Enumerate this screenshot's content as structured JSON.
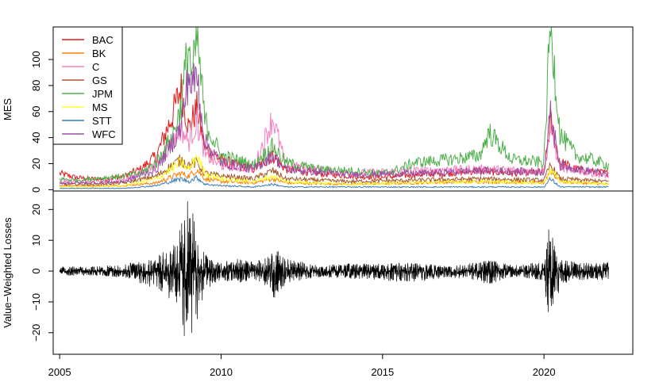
{
  "chart_data": [
    {
      "type": "line",
      "title": "",
      "xlabel": "",
      "ylabel": "MES",
      "xlim": [
        2004.8,
        2022.75
      ],
      "ylim": [
        -1,
        125
      ],
      "yticks": [
        "0",
        "20",
        "40",
        "60",
        "80",
        "100"
      ],
      "ytick_values": [
        0,
        20,
        40,
        60,
        80,
        100
      ],
      "legend_position": "top-left",
      "grid": false,
      "series": [
        {
          "name": "BAC",
          "color": "#e41a1c",
          "x": [
            2005.0,
            2005.5,
            2006.0,
            2006.5,
            2007.0,
            2007.5,
            2008.0,
            2008.5,
            2008.75,
            2009.0,
            2009.25,
            2009.5,
            2010.0,
            2010.5,
            2011.0,
            2011.6,
            2012.0,
            2013.0,
            2014.0,
            2015.0,
            2016.0,
            2017.0,
            2018.0,
            2019.0,
            2020.0,
            2020.2,
            2020.5,
            2021.0,
            2022.0
          ],
          "y": [
            12,
            9,
            8,
            8,
            10,
            15,
            25,
            55,
            75,
            45,
            60,
            30,
            22,
            18,
            15,
            25,
            15,
            12,
            10,
            9,
            11,
            12,
            14,
            12,
            13,
            50,
            20,
            15,
            12
          ]
        },
        {
          "name": "BK",
          "color": "#ff7f00",
          "x": [
            2005.0,
            2006.0,
            2007.0,
            2008.0,
            2008.75,
            2009.0,
            2009.25,
            2009.5,
            2010.0,
            2011.0,
            2011.6,
            2012.0,
            2014.0,
            2016.0,
            2018.0,
            2020.0,
            2020.2,
            2020.5,
            2022.0
          ],
          "y": [
            3,
            3,
            3,
            5,
            12,
            10,
            15,
            8,
            6,
            5,
            8,
            5,
            4,
            5,
            6,
            5,
            14,
            6,
            4
          ]
        },
        {
          "name": "C",
          "color": "#f781bf",
          "x": [
            2005.0,
            2006.0,
            2007.0,
            2008.0,
            2008.75,
            2009.0,
            2009.25,
            2009.5,
            2010.0,
            2011.0,
            2011.6,
            2012.0,
            2014.0,
            2016.0,
            2018.0,
            2020.0,
            2020.2,
            2020.5,
            2022.0
          ],
          "y": [
            6,
            6,
            7,
            18,
            45,
            35,
            50,
            25,
            18,
            15,
            53,
            18,
            12,
            14,
            15,
            14,
            45,
            16,
            10
          ]
        },
        {
          "name": "GS",
          "color": "#a65628",
          "x": [
            2005.0,
            2006.0,
            2007.0,
            2008.0,
            2008.75,
            2009.0,
            2009.25,
            2009.5,
            2010.0,
            2011.0,
            2011.6,
            2012.0,
            2014.0,
            2016.0,
            2018.0,
            2020.0,
            2020.2,
            2020.5,
            2022.0
          ],
          "y": [
            4,
            4,
            5,
            10,
            22,
            18,
            20,
            12,
            10,
            8,
            14,
            8,
            6,
            7,
            8,
            7,
            18,
            8,
            6
          ]
        },
        {
          "name": "JPM",
          "color": "#4daf4a",
          "x": [
            2005.0,
            2005.5,
            2006.0,
            2006.5,
            2007.0,
            2007.5,
            2008.0,
            2008.5,
            2008.75,
            2009.0,
            2009.1,
            2009.25,
            2009.5,
            2010.0,
            2010.5,
            2011.0,
            2011.6,
            2012.0,
            2013.0,
            2014.0,
            2015.0,
            2015.5,
            2016.0,
            2017.0,
            2018.0,
            2018.3,
            2019.0,
            2020.0,
            2020.2,
            2020.5,
            2021.0,
            2021.5,
            2022.0
          ],
          "y": [
            8,
            7,
            8,
            9,
            10,
            12,
            20,
            40,
            60,
            108,
            80,
            113,
            50,
            25,
            22,
            18,
            32,
            20,
            15,
            14,
            12,
            15,
            20,
            22,
            25,
            42,
            22,
            20,
            125,
            40,
            25,
            22,
            18
          ]
        },
        {
          "name": "MS",
          "color": "#ffff33",
          "x": [
            2005.0,
            2006.0,
            2007.0,
            2008.0,
            2008.75,
            2009.0,
            2009.25,
            2009.5,
            2010.0,
            2011.0,
            2011.6,
            2012.0,
            2014.0,
            2016.0,
            2018.0,
            2020.0,
            2020.2,
            2020.5,
            2022.0
          ],
          "y": [
            2,
            2,
            3,
            8,
            20,
            15,
            25,
            12,
            8,
            6,
            10,
            6,
            4,
            5,
            6,
            5,
            15,
            6,
            4
          ]
        },
        {
          "name": "STT",
          "color": "#377eb8",
          "x": [
            2005.0,
            2006.0,
            2007.0,
            2008.0,
            2008.75,
            2009.0,
            2009.25,
            2009.5,
            2010.0,
            2011.0,
            2011.6,
            2012.0,
            2014.0,
            2016.0,
            2018.0,
            2020.0,
            2020.2,
            2020.5,
            2022.0
          ],
          "y": [
            1,
            1,
            1,
            3,
            8,
            6,
            9,
            4,
            3,
            2,
            4,
            2,
            2,
            2,
            2,
            2,
            8,
            2,
            2
          ]
        },
        {
          "name": "WFC",
          "color": "#984ea3",
          "x": [
            2005.0,
            2006.0,
            2007.0,
            2008.0,
            2008.75,
            2009.0,
            2009.1,
            2009.25,
            2009.5,
            2010.0,
            2011.0,
            2011.6,
            2012.0,
            2014.0,
            2016.0,
            2018.0,
            2020.0,
            2020.2,
            2020.5,
            2022.0
          ],
          "y": [
            5,
            5,
            6,
            15,
            45,
            85,
            75,
            85,
            35,
            20,
            15,
            25,
            15,
            11,
            12,
            14,
            13,
            55,
            18,
            11
          ]
        }
      ]
    },
    {
      "type": "line",
      "title": "",
      "xlabel": "",
      "ylabel": "Value−Weighted Losses",
      "xlim": [
        2004.8,
        2022.75
      ],
      "ylim": [
        -27,
        26
      ],
      "yticks": [
        "−20",
        "−10",
        "0",
        "10",
        "20"
      ],
      "ytick_values": [
        -20,
        -10,
        0,
        10,
        20
      ],
      "xticks": [
        "2005",
        "2010",
        "2015",
        "2020"
      ],
      "xtick_values": [
        2005,
        2010,
        2015,
        2020
      ],
      "grid": false,
      "series": [
        {
          "name": "",
          "color": "#000000",
          "x": [
            2005.0,
            2006.0,
            2007.0,
            2007.5,
            2008.0,
            2008.5,
            2008.75,
            2008.9,
            2009.0,
            2009.15,
            2009.3,
            2009.5,
            2010.0,
            2010.5,
            2011.0,
            2011.5,
            2011.65,
            2012.0,
            2013.0,
            2014.0,
            2015.0,
            2016.0,
            2017.0,
            2018.0,
            2018.2,
            2019.0,
            2020.0,
            2020.15,
            2020.25,
            2020.4,
            2020.6,
            2021.0,
            2022.0
          ],
          "y_envelope_high": [
            1.5,
            1.5,
            2,
            4,
            5,
            8,
            15,
            22,
            24,
            18,
            10,
            6,
            3,
            4,
            3,
            5,
            8,
            4,
            2,
            2.5,
            2.5,
            3,
            2,
            3,
            4,
            2,
            3,
            15,
            12,
            6,
            4,
            3,
            3
          ],
          "y_envelope_low": [
            -1.5,
            -1.5,
            -2,
            -4,
            -6,
            -10,
            -17,
            -25,
            -20,
            -22,
            -15,
            -6,
            -3,
            -4,
            -3,
            -6,
            -9,
            -4,
            -2,
            -2.5,
            -3,
            -4,
            -2,
            -3,
            -5,
            -2,
            -3,
            -17,
            -14,
            -8,
            -5,
            -3,
            -3
          ]
        }
      ]
    }
  ]
}
